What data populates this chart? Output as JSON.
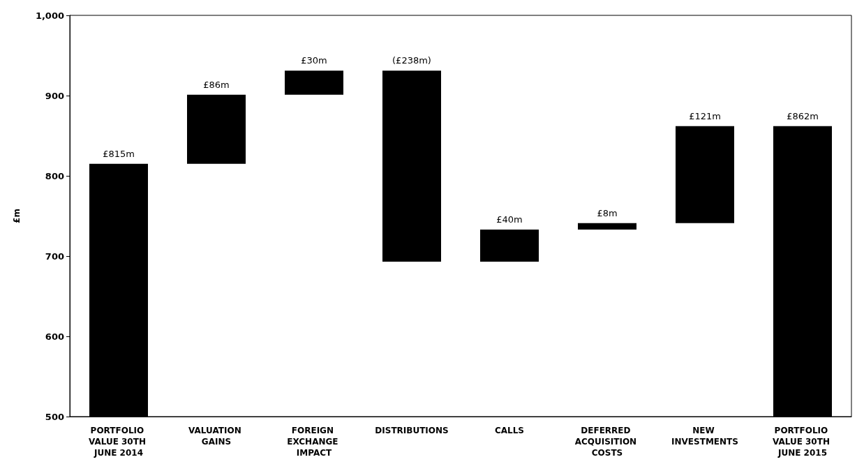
{
  "chart_data": {
    "type": "bar",
    "ylabel": "£m",
    "categories": [
      "PORTFOLIO VALUE 30TH JUNE 2014",
      "VALUATION GAINS",
      "FOREIGN EXCHANGE IMPACT",
      "DISTRIBUTIONS",
      "CALLS",
      "DEFERRED ACQUISITION COSTS",
      "NEW INVESTMENTS",
      "PORTFOLIO VALUE 30TH JUNE 2015"
    ],
    "values": [
      815,
      86,
      30,
      -238,
      40,
      8,
      121,
      862
    ],
    "base": [
      0,
      815,
      901,
      931,
      693,
      733,
      741,
      0
    ],
    "value_labels": [
      "£815m",
      "£86m",
      "£30m",
      "(£238m)",
      "£40m",
      "£8m",
      "£121m",
      "£862m"
    ],
    "color": "#000000",
    "ylim": [
      500,
      1000
    ],
    "yticks": [
      500,
      600,
      700,
      800,
      900,
      {
        "value": 1000,
        "label": "1,000"
      }
    ],
    "grid": false
  }
}
